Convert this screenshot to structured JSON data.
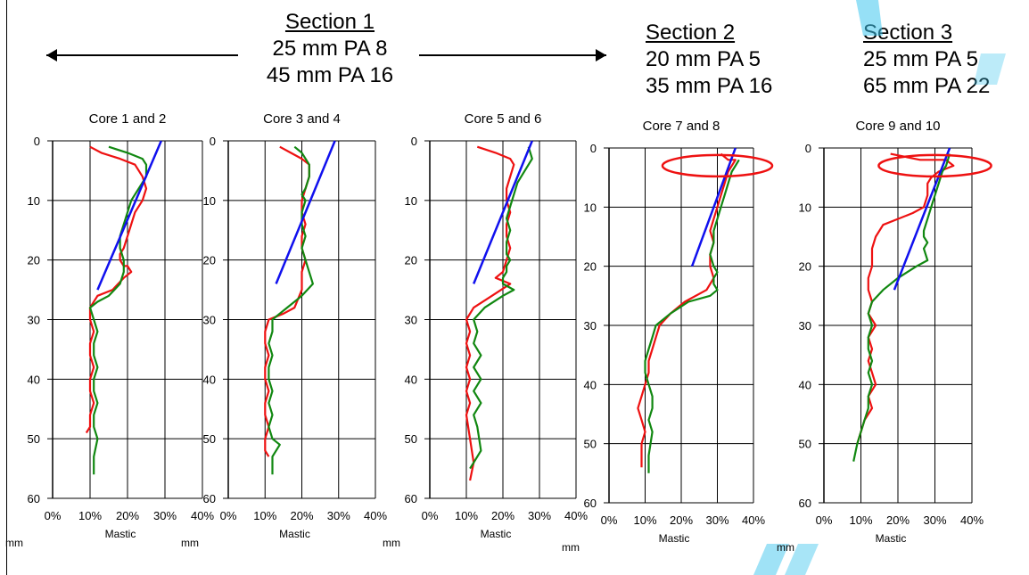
{
  "header": {
    "section1": {
      "title": "Section 1",
      "line1": "25 mm PA 8",
      "line2": "45 mm PA 16"
    },
    "section2": {
      "title": "Section 2",
      "line1": "20 mm PA 5",
      "line2": "35 mm PA 16"
    },
    "section3": {
      "title": "Section 3",
      "line1": "25 mm PA 5",
      "line2": "65 mm PA 22"
    }
  },
  "colors": {
    "red": "#ee1111",
    "green": "#118811",
    "blue": "#1010ee",
    "ellipse": "#ee1111",
    "grid": "#000000",
    "watermark": "#3fc6ee"
  },
  "chart_data": [
    {
      "type": "line",
      "title": "Core 1 and 2",
      "xlabel": "Mastic",
      "ylabel": "mm",
      "xlim": [
        0,
        0.4
      ],
      "ylim": [
        0,
        60
      ],
      "y_reversed": true,
      "grid": true,
      "x_tick_labels": [
        "0%",
        "10%",
        "20%",
        "30%",
        "40%"
      ],
      "y_tick_labels": [
        "0",
        "10",
        "20",
        "30",
        "40",
        "50",
        "60"
      ],
      "highlight": false,
      "series": [
        {
          "color": "red",
          "x": [
            0.1,
            0.13,
            0.18,
            0.22,
            0.24,
            0.25,
            0.24,
            0.22,
            0.21,
            0.2,
            0.19,
            0.18,
            0.18,
            0.19,
            0.2,
            0.21,
            0.19,
            0.16,
            0.12,
            0.1,
            0.1,
            0.11,
            0.1,
            0.1,
            0.11,
            0.1,
            0.1,
            0.11,
            0.1,
            0.1,
            0.09
          ],
          "y": [
            1,
            2,
            3,
            4,
            6,
            8,
            10,
            12,
            14,
            16,
            18,
            19,
            20,
            21,
            21,
            22,
            23,
            25,
            26,
            28,
            30,
            32,
            34,
            36,
            38,
            40,
            42,
            44,
            46,
            48,
            49
          ]
        },
        {
          "color": "green",
          "x": [
            0.15,
            0.2,
            0.24,
            0.25,
            0.25,
            0.23,
            0.21,
            0.2,
            0.19,
            0.18,
            0.18,
            0.19,
            0.19,
            0.18,
            0.15,
            0.12,
            0.1,
            0.11,
            0.12,
            0.11,
            0.11,
            0.12,
            0.11,
            0.11,
            0.12,
            0.11,
            0.11,
            0.12,
            0.11,
            0.11
          ],
          "y": [
            1,
            2,
            3,
            4,
            6,
            8,
            10,
            12,
            14,
            16,
            18,
            20,
            22,
            24,
            26,
            27,
            28,
            30,
            32,
            34,
            36,
            38,
            40,
            42,
            44,
            46,
            48,
            50,
            53,
            56
          ]
        },
        {
          "color": "blue",
          "x": [
            0.29,
            0.12
          ],
          "y": [
            0,
            25
          ]
        }
      ]
    },
    {
      "type": "line",
      "title": "Core 3 and 4",
      "xlabel": "Mastic",
      "ylabel": "mm",
      "xlim": [
        0,
        0.4
      ],
      "ylim": [
        0,
        60
      ],
      "y_reversed": true,
      "grid": true,
      "x_tick_labels": [
        "0%",
        "10%",
        "20%",
        "30%",
        "40%"
      ],
      "y_tick_labels": [
        "0",
        "10",
        "20",
        "30",
        "40",
        "50",
        "60"
      ],
      "highlight": false,
      "series": [
        {
          "color": "red",
          "x": [
            0.14,
            0.17,
            0.2,
            0.22,
            0.22,
            0.21,
            0.2,
            0.2,
            0.21,
            0.2,
            0.2,
            0.21,
            0.2,
            0.2,
            0.18,
            0.15,
            0.11,
            0.1,
            0.1,
            0.11,
            0.1,
            0.1,
            0.11,
            0.1,
            0.1,
            0.11,
            0.1,
            0.1,
            0.11
          ],
          "y": [
            1,
            2,
            3,
            4,
            6,
            8,
            10,
            12,
            14,
            16,
            18,
            20,
            22,
            25,
            28,
            29,
            30,
            32,
            34,
            36,
            38,
            40,
            42,
            44,
            46,
            48,
            50,
            52,
            53
          ]
        },
        {
          "color": "green",
          "x": [
            0.18,
            0.2,
            0.22,
            0.22,
            0.21,
            0.2,
            0.21,
            0.2,
            0.2,
            0.21,
            0.2,
            0.21,
            0.23,
            0.2,
            0.16,
            0.12,
            0.12,
            0.11,
            0.12,
            0.11,
            0.11,
            0.12,
            0.11,
            0.12,
            0.11,
            0.12,
            0.14,
            0.12,
            0.12
          ],
          "y": [
            1,
            2,
            4,
            6,
            8,
            9,
            10,
            12,
            14,
            16,
            18,
            20,
            24,
            26,
            28,
            30,
            32,
            34,
            36,
            38,
            40,
            42,
            44,
            46,
            48,
            50,
            51,
            53,
            56
          ]
        },
        {
          "color": "blue",
          "x": [
            0.29,
            0.13
          ],
          "y": [
            0,
            24
          ]
        }
      ]
    },
    {
      "type": "line",
      "title": "Core 5 and 6",
      "xlabel": "Mastic",
      "ylabel": "mm",
      "xlim": [
        0,
        0.4
      ],
      "ylim": [
        0,
        60
      ],
      "y_reversed": true,
      "grid": true,
      "x_tick_labels": [
        "0%",
        "10%",
        "20%",
        "30%",
        "40%"
      ],
      "y_tick_labels": [
        "0",
        "10",
        "20",
        "30",
        "40",
        "50",
        "60"
      ],
      "highlight": false,
      "series": [
        {
          "color": "red",
          "x": [
            0.13,
            0.18,
            0.22,
            0.23,
            0.22,
            0.21,
            0.21,
            0.22,
            0.21,
            0.21,
            0.22,
            0.21,
            0.2,
            0.18,
            0.22,
            0.17,
            0.12,
            0.1,
            0.11,
            0.1,
            0.11,
            0.1,
            0.11,
            0.1,
            0.11,
            0.1,
            0.11,
            0.12,
            0.11
          ],
          "y": [
            1,
            2,
            3,
            4,
            6,
            8,
            10,
            12,
            14,
            16,
            18,
            20,
            22,
            23,
            24,
            26,
            28,
            30,
            32,
            34,
            36,
            38,
            40,
            42,
            44,
            46,
            50,
            54,
            57
          ]
        },
        {
          "color": "green",
          "x": [
            0.27,
            0.28,
            0.26,
            0.24,
            0.23,
            0.22,
            0.21,
            0.22,
            0.21,
            0.21,
            0.22,
            0.21,
            0.21,
            0.2,
            0.2,
            0.23,
            0.2,
            0.15,
            0.12,
            0.13,
            0.12,
            0.14,
            0.12,
            0.14,
            0.12,
            0.14,
            0.12,
            0.13,
            0.14,
            0.12,
            0.11
          ],
          "y": [
            1,
            3,
            5,
            7,
            9,
            11,
            13,
            15,
            17,
            19,
            20,
            21,
            22,
            23,
            24,
            25,
            26,
            28,
            30,
            32,
            34,
            36,
            38,
            40,
            42,
            44,
            46,
            48,
            52,
            54,
            55
          ]
        },
        {
          "color": "blue",
          "x": [
            0.28,
            0.12
          ],
          "y": [
            0,
            24
          ]
        }
      ]
    },
    {
      "type": "line",
      "title": "Core 7 and 8",
      "xlabel": "Mastic",
      "ylabel": "mm",
      "xlim": [
        0,
        0.4
      ],
      "ylim": [
        0,
        60
      ],
      "y_reversed": true,
      "grid": true,
      "x_tick_labels": [
        "0%",
        "10%",
        "20%",
        "30%",
        "40%"
      ],
      "y_tick_labels": [
        "0",
        "10",
        "20",
        "30",
        "40",
        "50",
        "60"
      ],
      "highlight": true,
      "series": [
        {
          "color": "red",
          "x": [
            0.31,
            0.33,
            0.35,
            0.34,
            0.33,
            0.32,
            0.31,
            0.3,
            0.29,
            0.28,
            0.29,
            0.28,
            0.28,
            0.29,
            0.28,
            0.27,
            0.21,
            0.17,
            0.14,
            0.13,
            0.12,
            0.11,
            0.11,
            0.1,
            0.09,
            0.08,
            0.09,
            0.1,
            0.09,
            0.09
          ],
          "y": [
            1,
            2,
            2,
            3,
            4,
            6,
            8,
            10,
            12,
            14,
            16,
            18,
            20,
            22,
            23,
            24,
            26,
            28,
            30,
            32,
            34,
            36,
            38,
            40,
            42,
            44,
            46,
            48,
            50,
            54
          ]
        },
        {
          "color": "green",
          "x": [
            0.36,
            0.35,
            0.34,
            0.33,
            0.32,
            0.31,
            0.3,
            0.29,
            0.29,
            0.28,
            0.29,
            0.3,
            0.29,
            0.29,
            0.3,
            0.28,
            0.22,
            0.17,
            0.13,
            0.12,
            0.11,
            0.1,
            0.1,
            0.11,
            0.12,
            0.12,
            0.11,
            0.12,
            0.11,
            0.11
          ],
          "y": [
            2,
            3,
            4,
            6,
            8,
            10,
            12,
            14,
            16,
            18,
            20,
            21,
            22,
            23,
            24,
            25,
            26,
            28,
            30,
            32,
            34,
            36,
            38,
            40,
            42,
            44,
            46,
            48,
            52,
            55
          ]
        },
        {
          "color": "blue",
          "x": [
            0.35,
            0.23
          ],
          "y": [
            0,
            20
          ]
        }
      ]
    },
    {
      "type": "line",
      "title": "Core 9 and 10",
      "xlabel": "Mastic",
      "ylabel": "mm",
      "xlim": [
        0,
        0.4
      ],
      "ylim": [
        0,
        60
      ],
      "y_reversed": true,
      "grid": true,
      "x_tick_labels": [
        "0%",
        "10%",
        "20%",
        "30%",
        "40%"
      ],
      "y_tick_labels": [
        "0",
        "10",
        "20",
        "30",
        "40",
        "50",
        "60"
      ],
      "highlight": true,
      "series": [
        {
          "color": "red",
          "x": [
            0.18,
            0.26,
            0.33,
            0.35,
            0.31,
            0.29,
            0.28,
            0.28,
            0.27,
            0.24,
            0.16,
            0.14,
            0.13,
            0.13,
            0.12,
            0.12,
            0.13,
            0.12,
            0.14,
            0.12,
            0.13,
            0.12,
            0.13,
            0.14,
            0.12,
            0.13,
            0.11,
            0.1,
            0.09
          ],
          "y": [
            1,
            2,
            2,
            3,
            4,
            5,
            6,
            8,
            10,
            11,
            13,
            15,
            17,
            20,
            22,
            24,
            26,
            28,
            30,
            32,
            34,
            36,
            38,
            40,
            42,
            44,
            46,
            48,
            50
          ]
        },
        {
          "color": "green",
          "x": [
            0.34,
            0.33,
            0.32,
            0.31,
            0.3,
            0.29,
            0.28,
            0.27,
            0.27,
            0.28,
            0.27,
            0.28,
            0.25,
            0.2,
            0.16,
            0.13,
            0.12,
            0.13,
            0.12,
            0.12,
            0.13,
            0.12,
            0.13,
            0.12,
            0.12,
            0.11,
            0.1,
            0.09,
            0.08
          ],
          "y": [
            1,
            3,
            4,
            6,
            8,
            10,
            12,
            14,
            15,
            16,
            17,
            19,
            20,
            22,
            24,
            26,
            28,
            30,
            32,
            34,
            36,
            38,
            40,
            42,
            44,
            46,
            48,
            50,
            53
          ]
        },
        {
          "color": "blue",
          "x": [
            0.34,
            0.19
          ],
          "y": [
            0,
            24
          ]
        }
      ]
    }
  ]
}
